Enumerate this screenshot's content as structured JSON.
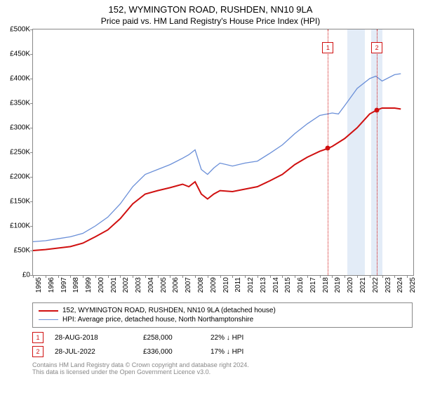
{
  "title": "152, WYMINGTON ROAD, RUSHDEN, NN10 9LA",
  "subtitle": "Price paid vs. HM Land Registry's House Price Index (HPI)",
  "colors": {
    "series_red": "#d01010",
    "series_blue": "#6a8fd8",
    "axis": "#888888",
    "band": "#e3ecf7",
    "vline": "#d01010",
    "text": "#000000",
    "footer": "#888888",
    "background": "#ffffff"
  },
  "y_axis": {
    "min": 0,
    "max": 500000,
    "ticks": [
      0,
      50000,
      100000,
      150000,
      200000,
      250000,
      300000,
      350000,
      400000,
      450000,
      500000
    ],
    "labels": [
      "£0",
      "£50K",
      "£100K",
      "£150K",
      "£200K",
      "£250K",
      "£300K",
      "£350K",
      "£400K",
      "£450K",
      "£500K"
    ]
  },
  "x_axis": {
    "min": 1995,
    "max": 2025.5,
    "ticks": [
      1995,
      1996,
      1997,
      1998,
      1999,
      2000,
      2001,
      2002,
      2003,
      2004,
      2005,
      2006,
      2007,
      2008,
      2009,
      2010,
      2011,
      2012,
      2013,
      2014,
      2015,
      2016,
      2017,
      2018,
      2019,
      2020,
      2021,
      2022,
      2023,
      2024,
      2025
    ],
    "labels": [
      "1995",
      "1996",
      "1997",
      "1998",
      "1999",
      "2000",
      "2001",
      "2002",
      "2003",
      "2004",
      "2005",
      "2006",
      "2007",
      "2008",
      "2009",
      "2010",
      "2011",
      "2012",
      "2013",
      "2014",
      "2015",
      "2016",
      "2017",
      "2018",
      "2019",
      "2020",
      "2021",
      "2022",
      "2023",
      "2024",
      "2025"
    ]
  },
  "series": {
    "red": {
      "label": "152, WYMINGTON ROAD, RUSHDEN, NN10 9LA (detached house)",
      "line_width": 2,
      "data": [
        [
          1995,
          50000
        ],
        [
          1996,
          52000
        ],
        [
          1997,
          55000
        ],
        [
          1998,
          58000
        ],
        [
          1999,
          65000
        ],
        [
          2000,
          78000
        ],
        [
          2001,
          92000
        ],
        [
          2002,
          115000
        ],
        [
          2003,
          145000
        ],
        [
          2004,
          165000
        ],
        [
          2005,
          172000
        ],
        [
          2006,
          178000
        ],
        [
          2007,
          185000
        ],
        [
          2007.5,
          180000
        ],
        [
          2008,
          190000
        ],
        [
          2008.5,
          165000
        ],
        [
          2009,
          155000
        ],
        [
          2009.5,
          165000
        ],
        [
          2010,
          172000
        ],
        [
          2011,
          170000
        ],
        [
          2012,
          175000
        ],
        [
          2013,
          180000
        ],
        [
          2014,
          192000
        ],
        [
          2015,
          205000
        ],
        [
          2016,
          225000
        ],
        [
          2017,
          240000
        ],
        [
          2018,
          252000
        ],
        [
          2018.66,
          258000
        ],
        [
          2019,
          262000
        ],
        [
          2020,
          278000
        ],
        [
          2021,
          300000
        ],
        [
          2022,
          328000
        ],
        [
          2022.58,
          336000
        ],
        [
          2023,
          340000
        ],
        [
          2024,
          340000
        ],
        [
          2024.5,
          338000
        ]
      ]
    },
    "blue": {
      "label": "HPI: Average price, detached house, North Northamptonshire",
      "line_width": 1.3,
      "data": [
        [
          1995,
          68000
        ],
        [
          1996,
          70000
        ],
        [
          1997,
          74000
        ],
        [
          1998,
          78000
        ],
        [
          1999,
          85000
        ],
        [
          2000,
          100000
        ],
        [
          2001,
          118000
        ],
        [
          2002,
          145000
        ],
        [
          2003,
          180000
        ],
        [
          2004,
          205000
        ],
        [
          2005,
          215000
        ],
        [
          2006,
          225000
        ],
        [
          2007,
          238000
        ],
        [
          2007.5,
          245000
        ],
        [
          2008,
          255000
        ],
        [
          2008.5,
          215000
        ],
        [
          2009,
          205000
        ],
        [
          2009.5,
          218000
        ],
        [
          2010,
          228000
        ],
        [
          2011,
          222000
        ],
        [
          2012,
          228000
        ],
        [
          2013,
          232000
        ],
        [
          2014,
          248000
        ],
        [
          2015,
          265000
        ],
        [
          2016,
          288000
        ],
        [
          2017,
          308000
        ],
        [
          2018,
          325000
        ],
        [
          2019,
          330000
        ],
        [
          2019.5,
          328000
        ],
        [
          2020,
          345000
        ],
        [
          2021,
          380000
        ],
        [
          2022,
          400000
        ],
        [
          2022.5,
          405000
        ],
        [
          2023,
          395000
        ],
        [
          2024,
          408000
        ],
        [
          2024.5,
          410000
        ]
      ]
    }
  },
  "sale_markers": [
    {
      "n": "1",
      "x": 2018.66,
      "y": 258000,
      "date": "28-AUG-2018",
      "price": "£258,000",
      "hpi": "22% ↓ HPI"
    },
    {
      "n": "2",
      "x": 2022.58,
      "y": 336000,
      "date": "28-JUL-2022",
      "price": "£336,000",
      "hpi": "17% ↓ HPI"
    }
  ],
  "bands": [
    {
      "from": 2020.2,
      "to": 2021.6
    },
    {
      "from": 2022.1,
      "to": 2023.0
    }
  ],
  "footer_lines": [
    "Contains HM Land Registry data © Crown copyright and database right 2024.",
    "This data is licensed under the Open Government Licence v3.0."
  ]
}
